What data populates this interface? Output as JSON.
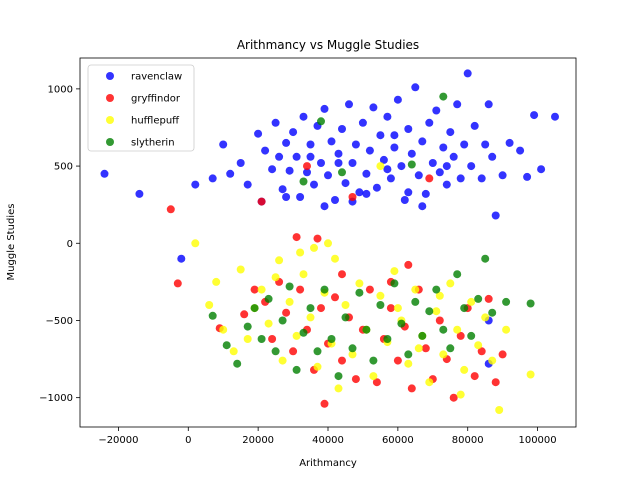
{
  "chart_data": {
    "type": "scatter",
    "title": "Arithmancy vs Muggle Studies",
    "xlabel": "Arithmancy",
    "ylabel": "Muggle Studies",
    "xlim": [
      -31000,
      111000
    ],
    "ylim": [
      -1190,
      1200
    ],
    "xticks": [
      -20000,
      0,
      20000,
      40000,
      60000,
      80000,
      100000
    ],
    "yticks": [
      -1000,
      -500,
      0,
      500,
      1000
    ],
    "grid": false,
    "legend_position": "top-left",
    "series": [
      {
        "name": "ravenclaw",
        "color": "#0000ff",
        "points": [
          [
            -24000,
            450
          ],
          [
            -14000,
            320
          ],
          [
            2000,
            380
          ],
          [
            7000,
            420
          ],
          [
            10000,
            640
          ],
          [
            12000,
            450
          ],
          [
            15000,
            520
          ],
          [
            17000,
            380
          ],
          [
            20000,
            710
          ],
          [
            21000,
            270
          ],
          [
            22000,
            600
          ],
          [
            24000,
            480
          ],
          [
            25000,
            780
          ],
          [
            26000,
            560
          ],
          [
            27000,
            350
          ],
          [
            28000,
            650
          ],
          [
            29000,
            470
          ],
          [
            30000,
            720
          ],
          [
            31000,
            560
          ],
          [
            32000,
            300
          ],
          [
            33000,
            820
          ],
          [
            34000,
            460
          ],
          [
            35000,
            640
          ],
          [
            36000,
            380
          ],
          [
            37000,
            760
          ],
          [
            38000,
            520
          ],
          [
            39000,
            870
          ],
          [
            40000,
            440
          ],
          [
            41000,
            660
          ],
          [
            42000,
            280
          ],
          [
            43000,
            580
          ],
          [
            44000,
            740
          ],
          [
            45000,
            390
          ],
          [
            46000,
            900
          ],
          [
            47000,
            520
          ],
          [
            48000,
            640
          ],
          [
            49000,
            330
          ],
          [
            50000,
            780
          ],
          [
            51000,
            450
          ],
          [
            52000,
            600
          ],
          [
            53000,
            880
          ],
          [
            54000,
            360
          ],
          [
            55000,
            700
          ],
          [
            56000,
            540
          ],
          [
            57000,
            820
          ],
          [
            58000,
            420
          ],
          [
            59000,
            620
          ],
          [
            60000,
            930
          ],
          [
            61000,
            500
          ],
          [
            62000,
            280
          ],
          [
            63000,
            740
          ],
          [
            64000,
            580
          ],
          [
            65000,
            1010
          ],
          [
            66000,
            440
          ],
          [
            67000,
            660
          ],
          [
            68000,
            320
          ],
          [
            69000,
            780
          ],
          [
            70000,
            520
          ],
          [
            71000,
            860
          ],
          [
            72000,
            460
          ],
          [
            73000,
            620
          ],
          [
            74000,
            380
          ],
          [
            75000,
            720
          ],
          [
            76000,
            560
          ],
          [
            77000,
            900
          ],
          [
            78000,
            420
          ],
          [
            79000,
            640
          ],
          [
            80000,
            1100
          ],
          [
            81000,
            500
          ],
          [
            82000,
            760
          ],
          [
            84000,
            420
          ],
          [
            85000,
            640
          ],
          [
            86000,
            900
          ],
          [
            87000,
            560
          ],
          [
            88000,
            180
          ],
          [
            90000,
            440
          ],
          [
            92000,
            650
          ],
          [
            95000,
            600
          ],
          [
            97000,
            430
          ],
          [
            99000,
            830
          ],
          [
            101000,
            480
          ],
          [
            105000,
            820
          ],
          [
            -2000,
            -100
          ],
          [
            86000,
            -500
          ],
          [
            86000,
            -780
          ],
          [
            47000,
            270
          ],
          [
            43000,
            520
          ],
          [
            51000,
            320
          ],
          [
            57000,
            480
          ],
          [
            63000,
            330
          ],
          [
            35000,
            560
          ],
          [
            39000,
            240
          ],
          [
            59000,
            700
          ],
          [
            67000,
            240
          ],
          [
            74000,
            500
          ],
          [
            28000,
            300
          ]
        ]
      },
      {
        "name": "gryffindor",
        "color": "#ff0000",
        "points": [
          [
            -5000,
            220
          ],
          [
            -3000,
            -260
          ],
          [
            9000,
            -550
          ],
          [
            16000,
            -460
          ],
          [
            19000,
            -300
          ],
          [
            22000,
            -380
          ],
          [
            24000,
            -620
          ],
          [
            26000,
            -250
          ],
          [
            28000,
            -450
          ],
          [
            30000,
            -700
          ],
          [
            32000,
            -300
          ],
          [
            34000,
            -560
          ],
          [
            36000,
            -820
          ],
          [
            38000,
            -420
          ],
          [
            39000,
            -1040
          ],
          [
            40000,
            -650
          ],
          [
            42000,
            -350
          ],
          [
            44000,
            -760
          ],
          [
            46000,
            -480
          ],
          [
            48000,
            -880
          ],
          [
            50000,
            -560
          ],
          [
            52000,
            -300
          ],
          [
            54000,
            -900
          ],
          [
            56000,
            -620
          ],
          [
            58000,
            -420
          ],
          [
            60000,
            -760
          ],
          [
            62000,
            -540
          ],
          [
            64000,
            -940
          ],
          [
            66000,
            -300
          ],
          [
            68000,
            -680
          ],
          [
            70000,
            -880
          ],
          [
            72000,
            -500
          ],
          [
            74000,
            -750
          ],
          [
            76000,
            -1000
          ],
          [
            78000,
            -600
          ],
          [
            80000,
            -420
          ],
          [
            82000,
            -860
          ],
          [
            84000,
            -700
          ],
          [
            86000,
            -360
          ],
          [
            88000,
            -900
          ],
          [
            90000,
            -720
          ],
          [
            34000,
            500
          ],
          [
            47000,
            300
          ],
          [
            69000,
            420
          ],
          [
            21000,
            270
          ],
          [
            31000,
            40
          ],
          [
            37000,
            30
          ],
          [
            44000,
            -200
          ],
          [
            58000,
            -250
          ],
          [
            63000,
            -140
          ]
        ]
      },
      {
        "name": "hufflepuff",
        "color": "#ffff00",
        "points": [
          [
            2000,
            0
          ],
          [
            6000,
            -400
          ],
          [
            8000,
            -250
          ],
          [
            10000,
            -560
          ],
          [
            13000,
            -700
          ],
          [
            15000,
            -170
          ],
          [
            17000,
            -620
          ],
          [
            19000,
            -420
          ],
          [
            21000,
            -300
          ],
          [
            23000,
            -520
          ],
          [
            25000,
            -220
          ],
          [
            27000,
            -760
          ],
          [
            29000,
            -380
          ],
          [
            31000,
            -600
          ],
          [
            33000,
            -200
          ],
          [
            35000,
            -480
          ],
          [
            37000,
            -800
          ],
          [
            39000,
            -320
          ],
          [
            41000,
            -650
          ],
          [
            43000,
            -940
          ],
          [
            45000,
            -400
          ],
          [
            47000,
            -720
          ],
          [
            49000,
            -260
          ],
          [
            51000,
            -560
          ],
          [
            53000,
            -860
          ],
          [
            55000,
            -340
          ],
          [
            57000,
            -640
          ],
          [
            59000,
            -180
          ],
          [
            61000,
            -500
          ],
          [
            63000,
            -780
          ],
          [
            65000,
            -300
          ],
          [
            67000,
            -600
          ],
          [
            69000,
            -900
          ],
          [
            71000,
            -440
          ],
          [
            73000,
            -720
          ],
          [
            75000,
            -260
          ],
          [
            77000,
            -560
          ],
          [
            79000,
            -820
          ],
          [
            81000,
            -380
          ],
          [
            83000,
            -660
          ],
          [
            85000,
            -480
          ],
          [
            87000,
            -760
          ],
          [
            89000,
            -1080
          ],
          [
            91000,
            -560
          ],
          [
            98000,
            -850
          ],
          [
            26000,
            -110
          ],
          [
            32000,
            -60
          ],
          [
            36000,
            -30
          ],
          [
            40000,
            0
          ],
          [
            55000,
            500
          ],
          [
            42000,
            -100
          ],
          [
            60000,
            -420
          ],
          [
            66000,
            -680
          ],
          [
            72000,
            -340
          ],
          [
            78000,
            -980
          ]
        ]
      },
      {
        "name": "slytherin",
        "color": "#008000",
        "points": [
          [
            7000,
            -470
          ],
          [
            11000,
            -660
          ],
          [
            14000,
            -780
          ],
          [
            17000,
            -540
          ],
          [
            19000,
            -420
          ],
          [
            21000,
            -620
          ],
          [
            23000,
            -360
          ],
          [
            25000,
            -700
          ],
          [
            27000,
            -500
          ],
          [
            29000,
            -280
          ],
          [
            31000,
            -820
          ],
          [
            33000,
            -580
          ],
          [
            35000,
            -420
          ],
          [
            37000,
            -700
          ],
          [
            39000,
            -300
          ],
          [
            41000,
            -620
          ],
          [
            43000,
            -860
          ],
          [
            45000,
            -480
          ],
          [
            47000,
            -680
          ],
          [
            49000,
            -320
          ],
          [
            51000,
            -560
          ],
          [
            53000,
            -760
          ],
          [
            55000,
            -400
          ],
          [
            57000,
            -620
          ],
          [
            59000,
            -260
          ],
          [
            61000,
            -520
          ],
          [
            63000,
            -720
          ],
          [
            65000,
            -380
          ],
          [
            67000,
            -600
          ],
          [
            69000,
            -440
          ],
          [
            71000,
            -300
          ],
          [
            73000,
            -560
          ],
          [
            75000,
            -680
          ],
          [
            77000,
            -200
          ],
          [
            79000,
            -420
          ],
          [
            81000,
            -600
          ],
          [
            83000,
            -360
          ],
          [
            85000,
            -100
          ],
          [
            87000,
            -450
          ],
          [
            91000,
            -380
          ],
          [
            98000,
            -390
          ],
          [
            38000,
            790
          ],
          [
            73000,
            950
          ],
          [
            44000,
            460
          ],
          [
            33000,
            400
          ],
          [
            64000,
            510
          ]
        ]
      }
    ]
  }
}
